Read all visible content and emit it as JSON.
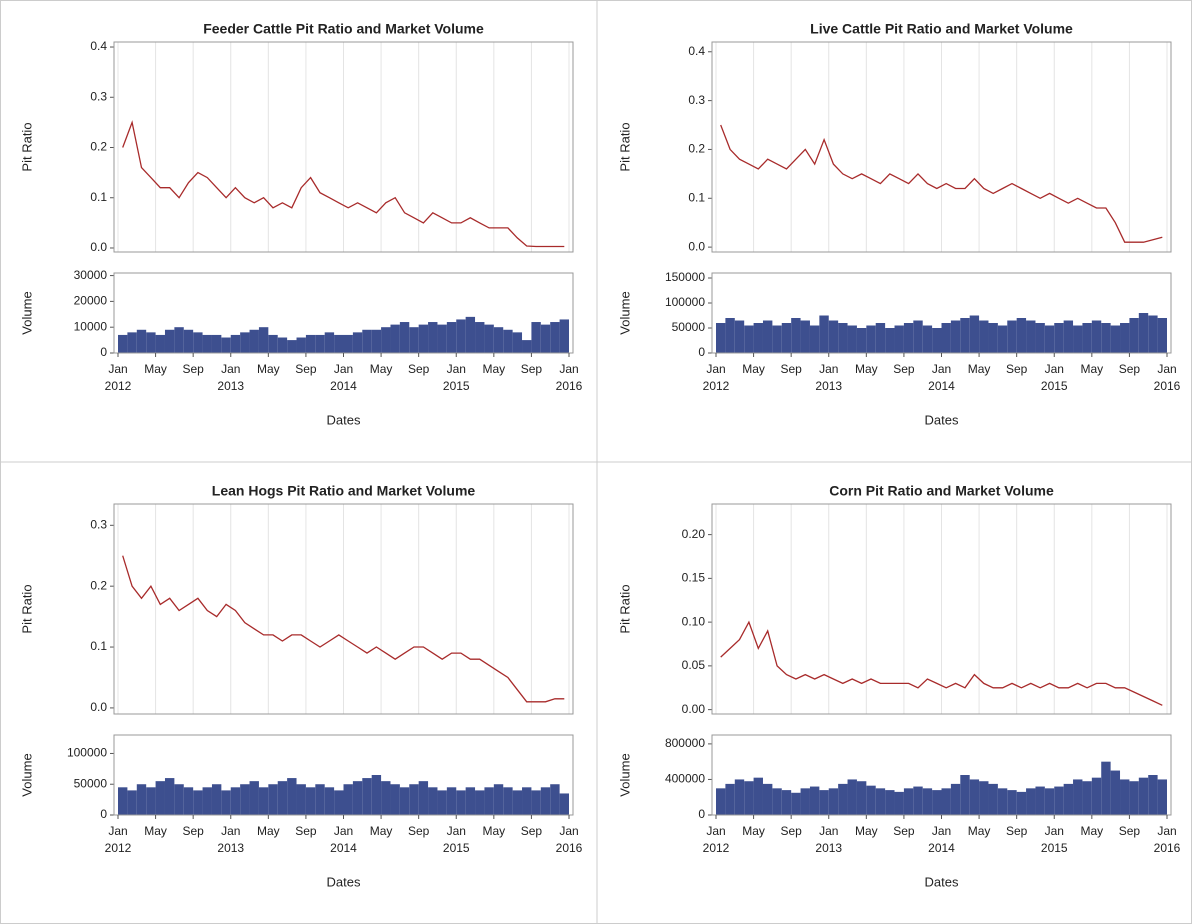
{
  "chart_data": [
    {
      "type": "line",
      "title": "Feeder Cattle Pit Ratio and Market Volume",
      "y_label": "Pit Ratio",
      "x_label": "Dates",
      "x": [
        "2012-01",
        "2012-02",
        "2012-03",
        "2012-04",
        "2012-05",
        "2012-06",
        "2012-07",
        "2012-08",
        "2012-09",
        "2012-10",
        "2012-11",
        "2012-12",
        "2013-01",
        "2013-02",
        "2013-03",
        "2013-04",
        "2013-05",
        "2013-06",
        "2013-07",
        "2013-08",
        "2013-09",
        "2013-10",
        "2013-11",
        "2013-12",
        "2014-01",
        "2014-02",
        "2014-03",
        "2014-04",
        "2014-05",
        "2014-06",
        "2014-07",
        "2014-08",
        "2014-09",
        "2014-10",
        "2014-11",
        "2014-12",
        "2015-01",
        "2015-02",
        "2015-03",
        "2015-04",
        "2015-05",
        "2015-06",
        "2015-07",
        "2015-08",
        "2015-09",
        "2015-10",
        "2015-11",
        "2015-12"
      ],
      "xticks": [
        {
          "value": "2012-01",
          "label": "Jan",
          "year": "2012"
        },
        {
          "value": "2012-05",
          "label": "May"
        },
        {
          "value": "2012-09",
          "label": "Sep"
        },
        {
          "value": "2013-01",
          "label": "Jan",
          "year": "2013"
        },
        {
          "value": "2013-05",
          "label": "May"
        },
        {
          "value": "2013-09",
          "label": "Sep"
        },
        {
          "value": "2014-01",
          "label": "Jan",
          "year": "2014"
        },
        {
          "value": "2014-05",
          "label": "May"
        },
        {
          "value": "2014-09",
          "label": "Sep"
        },
        {
          "value": "2015-01",
          "label": "Jan",
          "year": "2015"
        },
        {
          "value": "2015-05",
          "label": "May"
        },
        {
          "value": "2015-09",
          "label": "Sep"
        },
        {
          "value": "2016-01",
          "label": "Jan",
          "year": "2016"
        }
      ],
      "series": [
        {
          "color": "#a82b2b",
          "values": [
            0.2,
            0.25,
            0.16,
            0.14,
            0.12,
            0.12,
            0.1,
            0.13,
            0.15,
            0.14,
            0.12,
            0.1,
            0.12,
            0.1,
            0.09,
            0.1,
            0.08,
            0.09,
            0.08,
            0.12,
            0.14,
            0.11,
            0.1,
            0.09,
            0.08,
            0.09,
            0.08,
            0.07,
            0.09,
            0.1,
            0.07,
            0.06,
            0.05,
            0.07,
            0.06,
            0.05,
            0.05,
            0.06,
            0.05,
            0.04,
            0.04,
            0.04,
            0.02,
            0.004,
            0.003,
            0.003,
            0.003,
            0.003
          ]
        }
      ],
      "ylim": [
        -0.008,
        0.41
      ],
      "yticks": [
        {
          "value": 0,
          "label": "0.0"
        },
        {
          "value": 0.1,
          "label": "0.1"
        },
        {
          "value": 0.2,
          "label": "0.2"
        },
        {
          "value": 0.3,
          "label": "0.3"
        },
        {
          "value": 0.4,
          "label": "0.4"
        }
      ],
      "volume": {
        "y_label": "Volume",
        "color": "#3d4f8f",
        "values": [
          7000,
          8000,
          9000,
          8000,
          7000,
          9000,
          10000,
          9000,
          8000,
          7000,
          7000,
          6000,
          7000,
          8000,
          9000,
          10000,
          7000,
          6000,
          5000,
          6000,
          7000,
          7000,
          8000,
          7000,
          7000,
          8000,
          9000,
          9000,
          10000,
          11000,
          12000,
          10000,
          11000,
          12000,
          11000,
          12000,
          13000,
          14000,
          12000,
          11000,
          10000,
          9000,
          8000,
          5000,
          12000,
          11000,
          12000,
          13000
        ],
        "ylim": [
          0,
          31000
        ],
        "yticks": [
          0,
          10000,
          20000,
          30000
        ]
      }
    },
    {
      "type": "line",
      "title": "Live Cattle Pit Ratio and Market Volume",
      "y_label": "Pit Ratio",
      "x_label": "Dates",
      "x": [
        "2012-01",
        "2012-02",
        "2012-03",
        "2012-04",
        "2012-05",
        "2012-06",
        "2012-07",
        "2012-08",
        "2012-09",
        "2012-10",
        "2012-11",
        "2012-12",
        "2013-01",
        "2013-02",
        "2013-03",
        "2013-04",
        "2013-05",
        "2013-06",
        "2013-07",
        "2013-08",
        "2013-09",
        "2013-10",
        "2013-11",
        "2013-12",
        "2014-01",
        "2014-02",
        "2014-03",
        "2014-04",
        "2014-05",
        "2014-06",
        "2014-07",
        "2014-08",
        "2014-09",
        "2014-10",
        "2014-11",
        "2014-12",
        "2015-01",
        "2015-02",
        "2015-03",
        "2015-04",
        "2015-05",
        "2015-06",
        "2015-07",
        "2015-08",
        "2015-09",
        "2015-10",
        "2015-11",
        "2015-12"
      ],
      "xticks": [
        {
          "value": "2012-01",
          "label": "Jan",
          "year": "2012"
        },
        {
          "value": "2012-05",
          "label": "May"
        },
        {
          "value": "2012-09",
          "label": "Sep"
        },
        {
          "value": "2013-01",
          "label": "Jan",
          "year": "2013"
        },
        {
          "value": "2013-05",
          "label": "May"
        },
        {
          "value": "2013-09",
          "label": "Sep"
        },
        {
          "value": "2014-01",
          "label": "Jan",
          "year": "2014"
        },
        {
          "value": "2014-05",
          "label": "May"
        },
        {
          "value": "2014-09",
          "label": "Sep"
        },
        {
          "value": "2015-01",
          "label": "Jan",
          "year": "2015"
        },
        {
          "value": "2015-05",
          "label": "May"
        },
        {
          "value": "2015-09",
          "label": "Sep"
        },
        {
          "value": "2016-01",
          "label": "Jan",
          "year": "2016"
        }
      ],
      "series": [
        {
          "color": "#a82b2b",
          "values": [
            0.25,
            0.2,
            0.18,
            0.17,
            0.16,
            0.18,
            0.17,
            0.16,
            0.18,
            0.2,
            0.17,
            0.22,
            0.17,
            0.15,
            0.14,
            0.15,
            0.14,
            0.13,
            0.15,
            0.14,
            0.13,
            0.15,
            0.13,
            0.12,
            0.13,
            0.12,
            0.12,
            0.14,
            0.12,
            0.11,
            0.12,
            0.13,
            0.12,
            0.11,
            0.1,
            0.11,
            0.1,
            0.09,
            0.1,
            0.09,
            0.08,
            0.08,
            0.05,
            0.01,
            0.01,
            0.01,
            0.015,
            0.02
          ]
        }
      ],
      "ylim": [
        -0.01,
        0.42
      ],
      "yticks": [
        {
          "value": 0,
          "label": "0.0"
        },
        {
          "value": 0.1,
          "label": "0.1"
        },
        {
          "value": 0.2,
          "label": "0.2"
        },
        {
          "value": 0.3,
          "label": "0.3"
        },
        {
          "value": 0.4,
          "label": "0.4"
        }
      ],
      "volume": {
        "y_label": "Volume",
        "color": "#3d4f8f",
        "values": [
          60000,
          70000,
          65000,
          55000,
          60000,
          65000,
          55000,
          60000,
          70000,
          65000,
          55000,
          75000,
          65000,
          60000,
          55000,
          50000,
          55000,
          60000,
          50000,
          55000,
          60000,
          65000,
          55000,
          50000,
          60000,
          65000,
          70000,
          75000,
          65000,
          60000,
          55000,
          65000,
          70000,
          65000,
          60000,
          55000,
          60000,
          65000,
          55000,
          60000,
          65000,
          60000,
          55000,
          60000,
          70000,
          80000,
          75000,
          70000
        ],
        "ylim": [
          0,
          160000
        ],
        "yticks": [
          0,
          50000,
          100000,
          150000
        ]
      }
    },
    {
      "type": "line",
      "title": "Lean Hogs Pit Ratio and Market Volume",
      "y_label": "Pit Ratio",
      "x_label": "Dates",
      "x": [
        "2012-01",
        "2012-02",
        "2012-03",
        "2012-04",
        "2012-05",
        "2012-06",
        "2012-07",
        "2012-08",
        "2012-09",
        "2012-10",
        "2012-11",
        "2012-12",
        "2013-01",
        "2013-02",
        "2013-03",
        "2013-04",
        "2013-05",
        "2013-06",
        "2013-07",
        "2013-08",
        "2013-09",
        "2013-10",
        "2013-11",
        "2013-12",
        "2014-01",
        "2014-02",
        "2014-03",
        "2014-04",
        "2014-05",
        "2014-06",
        "2014-07",
        "2014-08",
        "2014-09",
        "2014-10",
        "2014-11",
        "2014-12",
        "2015-01",
        "2015-02",
        "2015-03",
        "2015-04",
        "2015-05",
        "2015-06",
        "2015-07",
        "2015-08",
        "2015-09",
        "2015-10",
        "2015-11",
        "2015-12"
      ],
      "xticks": [
        {
          "value": "2012-01",
          "label": "Jan",
          "year": "2012"
        },
        {
          "value": "2012-05",
          "label": "May"
        },
        {
          "value": "2012-09",
          "label": "Sep"
        },
        {
          "value": "2013-01",
          "label": "Jan",
          "year": "2013"
        },
        {
          "value": "2013-05",
          "label": "May"
        },
        {
          "value": "2013-09",
          "label": "Sep"
        },
        {
          "value": "2014-01",
          "label": "Jan",
          "year": "2014"
        },
        {
          "value": "2014-05",
          "label": "May"
        },
        {
          "value": "2014-09",
          "label": "Sep"
        },
        {
          "value": "2015-01",
          "label": "Jan",
          "year": "2015"
        },
        {
          "value": "2015-05",
          "label": "May"
        },
        {
          "value": "2015-09",
          "label": "Sep"
        },
        {
          "value": "2016-01",
          "label": "Jan",
          "year": "2016"
        }
      ],
      "series": [
        {
          "color": "#a82b2b",
          "values": [
            0.25,
            0.2,
            0.18,
            0.2,
            0.17,
            0.18,
            0.16,
            0.17,
            0.18,
            0.16,
            0.15,
            0.17,
            0.16,
            0.14,
            0.13,
            0.12,
            0.12,
            0.11,
            0.12,
            0.12,
            0.11,
            0.1,
            0.11,
            0.12,
            0.11,
            0.1,
            0.09,
            0.1,
            0.09,
            0.08,
            0.09,
            0.1,
            0.1,
            0.09,
            0.08,
            0.09,
            0.09,
            0.08,
            0.08,
            0.07,
            0.06,
            0.05,
            0.03,
            0.01,
            0.01,
            0.01,
            0.015,
            0.015
          ]
        }
      ],
      "ylim": [
        -0.01,
        0.335
      ],
      "yticks": [
        {
          "value": 0,
          "label": "0.0"
        },
        {
          "value": 0.1,
          "label": "0.1"
        },
        {
          "value": 0.2,
          "label": "0.2"
        },
        {
          "value": 0.3,
          "label": "0.3"
        }
      ],
      "volume": {
        "y_label": "Volume",
        "color": "#3d4f8f",
        "values": [
          45000,
          40000,
          50000,
          45000,
          55000,
          60000,
          50000,
          45000,
          40000,
          45000,
          50000,
          40000,
          45000,
          50000,
          55000,
          45000,
          50000,
          55000,
          60000,
          50000,
          45000,
          50000,
          45000,
          40000,
          50000,
          55000,
          60000,
          65000,
          55000,
          50000,
          45000,
          50000,
          55000,
          45000,
          40000,
          45000,
          40000,
          45000,
          40000,
          45000,
          50000,
          45000,
          40000,
          45000,
          40000,
          45000,
          50000,
          35000
        ],
        "ylim": [
          0,
          130000
        ],
        "yticks": [
          0,
          50000,
          100000
        ]
      }
    },
    {
      "type": "line",
      "title": "Corn Pit Ratio and Market Volume",
      "y_label": "Pit Ratio",
      "x_label": "Dates",
      "x": [
        "2012-01",
        "2012-02",
        "2012-03",
        "2012-04",
        "2012-05",
        "2012-06",
        "2012-07",
        "2012-08",
        "2012-09",
        "2012-10",
        "2012-11",
        "2012-12",
        "2013-01",
        "2013-02",
        "2013-03",
        "2013-04",
        "2013-05",
        "2013-06",
        "2013-07",
        "2013-08",
        "2013-09",
        "2013-10",
        "2013-11",
        "2013-12",
        "2014-01",
        "2014-02",
        "2014-03",
        "2014-04",
        "2014-05",
        "2014-06",
        "2014-07",
        "2014-08",
        "2014-09",
        "2014-10",
        "2014-11",
        "2014-12",
        "2015-01",
        "2015-02",
        "2015-03",
        "2015-04",
        "2015-05",
        "2015-06",
        "2015-07",
        "2015-08",
        "2015-09",
        "2015-10",
        "2015-11",
        "2015-12"
      ],
      "xticks": [
        {
          "value": "2012-01",
          "label": "Jan",
          "year": "2012"
        },
        {
          "value": "2012-05",
          "label": "May"
        },
        {
          "value": "2012-09",
          "label": "Sep"
        },
        {
          "value": "2013-01",
          "label": "Jan",
          "year": "2013"
        },
        {
          "value": "2013-05",
          "label": "May"
        },
        {
          "value": "2013-09",
          "label": "Sep"
        },
        {
          "value": "2014-01",
          "label": "Jan",
          "year": "2014"
        },
        {
          "value": "2014-05",
          "label": "May"
        },
        {
          "value": "2014-09",
          "label": "Sep"
        },
        {
          "value": "2015-01",
          "label": "Jan",
          "year": "2015"
        },
        {
          "value": "2015-05",
          "label": "May"
        },
        {
          "value": "2015-09",
          "label": "Sep"
        },
        {
          "value": "2016-01",
          "label": "Jan",
          "year": "2016"
        }
      ],
      "series": [
        {
          "color": "#a82b2b",
          "values": [
            0.06,
            0.07,
            0.08,
            0.1,
            0.07,
            0.09,
            0.05,
            0.04,
            0.035,
            0.04,
            0.035,
            0.04,
            0.035,
            0.03,
            0.035,
            0.03,
            0.035,
            0.03,
            0.03,
            0.03,
            0.03,
            0.025,
            0.035,
            0.03,
            0.025,
            0.03,
            0.025,
            0.04,
            0.03,
            0.025,
            0.025,
            0.03,
            0.025,
            0.03,
            0.025,
            0.03,
            0.025,
            0.025,
            0.03,
            0.025,
            0.03,
            0.03,
            0.025,
            0.025,
            0.02,
            0.015,
            0.01,
            0.005
          ]
        }
      ],
      "ylim": [
        -0.005,
        0.235
      ],
      "yticks": [
        {
          "value": 0,
          "label": "0.00"
        },
        {
          "value": 0.05,
          "label": "0.05"
        },
        {
          "value": 0.1,
          "label": "0.10"
        },
        {
          "value": 0.15,
          "label": "0.15"
        },
        {
          "value": 0.2,
          "label": "0.20"
        }
      ],
      "volume": {
        "y_label": "Volume",
        "color": "#3d4f8f",
        "values": [
          300000,
          350000,
          400000,
          380000,
          420000,
          350000,
          300000,
          280000,
          250000,
          300000,
          320000,
          280000,
          300000,
          350000,
          400000,
          380000,
          330000,
          300000,
          280000,
          260000,
          300000,
          320000,
          300000,
          280000,
          300000,
          350000,
          450000,
          400000,
          380000,
          350000,
          300000,
          280000,
          260000,
          300000,
          320000,
          300000,
          320000,
          350000,
          400000,
          380000,
          420000,
          600000,
          500000,
          400000,
          380000,
          420000,
          450000,
          400000
        ],
        "ylim": [
          0,
          900000
        ],
        "yticks": [
          0,
          400000,
          800000
        ]
      }
    }
  ]
}
